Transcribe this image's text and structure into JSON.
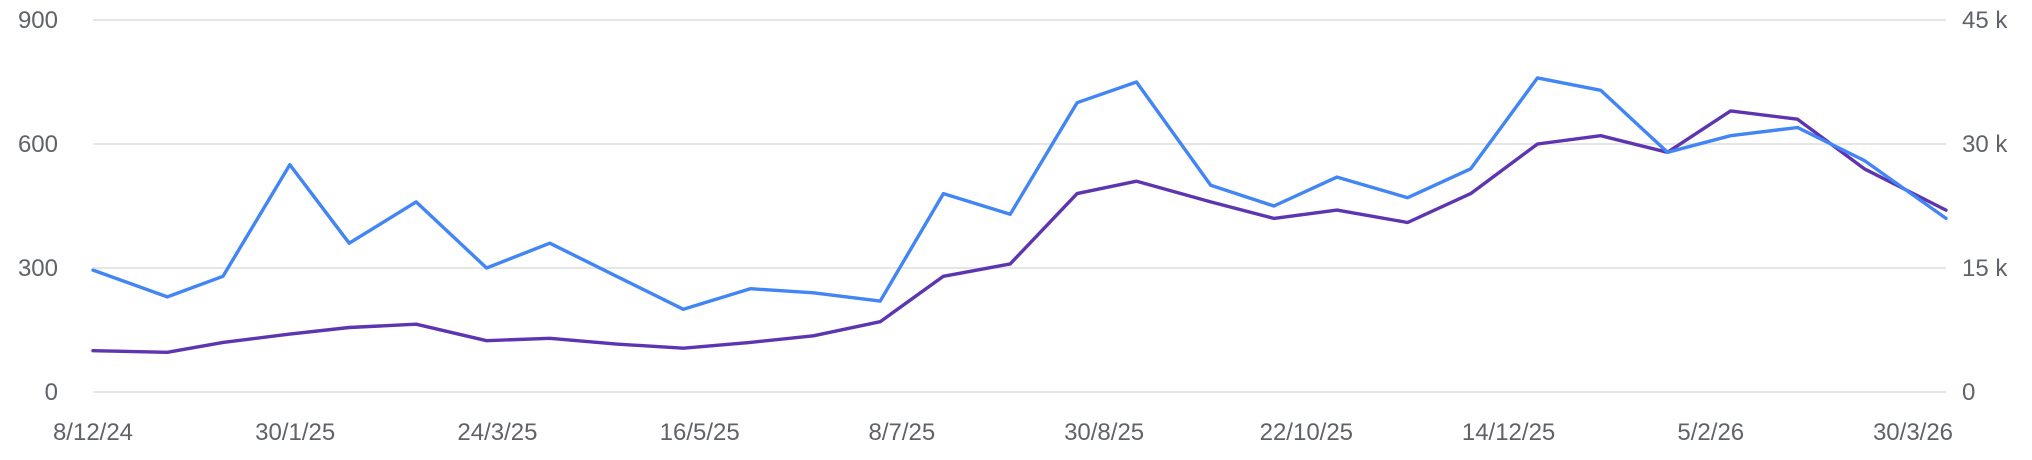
{
  "chart_data": {
    "type": "line",
    "title": "",
    "xlabel": "",
    "ylabel": "",
    "y_left_ticks": [
      "0",
      "300",
      "600",
      "900"
    ],
    "y_right_ticks": [
      "0",
      "15 k",
      "30 k",
      "45 k"
    ],
    "ylim_left": [
      0,
      900
    ],
    "ylim_right": [
      0,
      45000
    ],
    "x_ticks": [
      "8/12/24",
      "30/1/25",
      "24/3/25",
      "16/5/25",
      "8/7/25",
      "30/8/25",
      "22/10/25",
      "14/12/25",
      "5/2/26",
      "30/3/26"
    ],
    "x_range": [
      "2024-12-08",
      "2026-04-21"
    ],
    "grid": "horizontal",
    "colors": {
      "left_series": "#4285f4",
      "right_series": "#5e35b1"
    },
    "series": [
      {
        "axis": "left",
        "color": "#4285f4",
        "x": [
          "2024-12-08",
          "2024-12-28",
          "2025-01-12",
          "2025-01-30",
          "2025-02-15",
          "2025-03-05",
          "2025-03-24",
          "2025-04-10",
          "2025-04-28",
          "2025-05-16",
          "2025-06-03",
          "2025-06-20",
          "2025-07-08",
          "2025-07-25",
          "2025-08-12",
          "2025-08-30",
          "2025-09-15",
          "2025-10-05",
          "2025-10-22",
          "2025-11-08",
          "2025-11-27",
          "2025-12-14",
          "2026-01-01",
          "2026-01-18",
          "2026-02-05",
          "2026-02-22",
          "2026-03-12",
          "2026-03-30",
          "2026-04-21"
        ],
        "values": [
          295,
          230,
          280,
          550,
          360,
          460,
          300,
          360,
          280,
          200,
          250,
          240,
          220,
          480,
          430,
          700,
          750,
          500,
          450,
          520,
          470,
          540,
          760,
          730,
          580,
          620,
          640,
          560,
          420
        ]
      },
      {
        "axis": "right",
        "color": "#5e35b1",
        "values": [
          5000,
          4800,
          6000,
          7000,
          7800,
          8200,
          6200,
          6500,
          5800,
          5300,
          6000,
          6800,
          8500,
          14000,
          15500,
          24000,
          25500,
          23000,
          21000,
          22000,
          20500,
          24000,
          30000,
          31000,
          29000,
          34000,
          33000,
          27000,
          22000
        ]
      }
    ]
  }
}
